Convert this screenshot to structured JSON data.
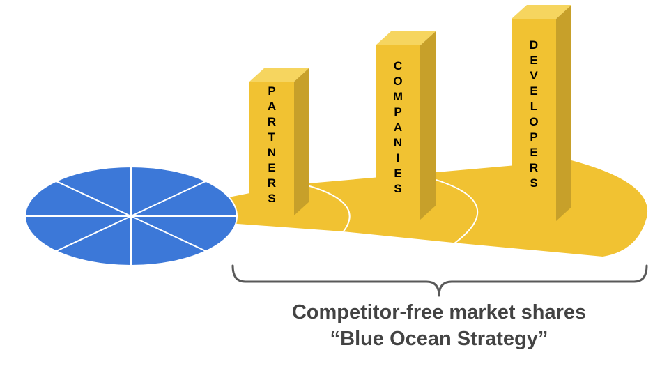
{
  "colors": {
    "pie_blue": "#3c78d8",
    "gold_fill": "#f1c232",
    "gold_side": "#c7a02a",
    "gold_top": "#f6d55f",
    "divider": "#ffffff",
    "bracket": "#595959",
    "caption": "#434343"
  },
  "diagram": {
    "pie_slices": 8,
    "bars": [
      {
        "label": "PARTNERS"
      },
      {
        "label": "COMPANIES"
      },
      {
        "label": "DEVELOPERS"
      }
    ]
  },
  "caption": {
    "line1": "Competitor-free market shares",
    "line2": "“Blue Ocean Strategy”"
  }
}
